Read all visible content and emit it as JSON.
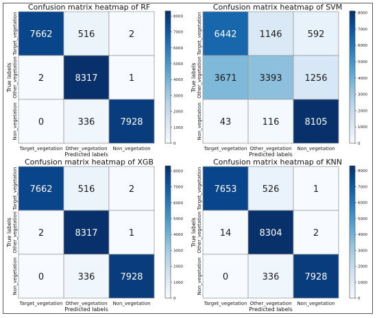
{
  "chart_data": [
    {
      "type": "heatmap",
      "title": "Confusion matrix heatmap of RF",
      "rows": [
        "Target_vegetation",
        "Other_vegetation",
        "Non_vegetation"
      ],
      "cols": [
        "Target_vegetation",
        "Other_vegetation",
        "Non_vegetation"
      ],
      "values": [
        [
          7662,
          516,
          2
        ],
        [
          2,
          8317,
          1
        ],
        [
          0,
          336,
          7928
        ]
      ],
      "xlabel": "Predicted labels",
      "ylabel": "True labels",
      "colorbar": {
        "min": 0,
        "max": 8317,
        "ticks": [
          0,
          1000,
          2000,
          3000,
          4000,
          5000,
          6000,
          7000,
          8000
        ]
      },
      "colormap": "Blues"
    },
    {
      "type": "heatmap",
      "title": "Confusion matrix heatmap of SVM",
      "rows": [
        "Target_vegetation",
        "Other_vegetation",
        "Non_vegetation"
      ],
      "cols": [
        "Target_vegetation",
        "Other_vegetation",
        "Non_vegetation"
      ],
      "values": [
        [
          6442,
          1146,
          592
        ],
        [
          3671,
          3393,
          1256
        ],
        [
          43,
          116,
          8105
        ]
      ],
      "xlabel": "Predicted labels",
      "ylabel": "True labels",
      "colorbar": {
        "min": 0,
        "max": 8105,
        "ticks": [
          0,
          1000,
          2000,
          3000,
          4000,
          5000,
          6000,
          7000,
          8000
        ]
      },
      "colormap": "Blues"
    },
    {
      "type": "heatmap",
      "title": "Confusion matrix heatmap of XGB",
      "rows": [
        "Target_vegetation",
        "Other_vegetation",
        "Non_vegetation"
      ],
      "cols": [
        "Target_vegetation",
        "Other_vegetation",
        "Non_vegetation"
      ],
      "values": [
        [
          7662,
          516,
          2
        ],
        [
          2,
          8317,
          1
        ],
        [
          0,
          336,
          7928
        ]
      ],
      "xlabel": "Predicted labels",
      "ylabel": "True labels",
      "colorbar": {
        "min": 0,
        "max": 8317,
        "ticks": [
          0,
          1000,
          2000,
          3000,
          4000,
          5000,
          6000,
          7000,
          8000
        ]
      },
      "colormap": "Blues"
    },
    {
      "type": "heatmap",
      "title": "Confusion matrix heatmap of KNN",
      "rows": [
        "Target_vegetation",
        "Other_vegetation",
        "Non_vegetation"
      ],
      "cols": [
        "Target_vegetation",
        "Other_vegetation",
        "Non_vegetation"
      ],
      "values": [
        [
          7653,
          526,
          1
        ],
        [
          14,
          8304,
          2
        ],
        [
          0,
          336,
          7928
        ]
      ],
      "xlabel": "Predicted labels",
      "ylabel": "True labels",
      "colorbar": {
        "min": 0,
        "max": 8304,
        "ticks": [
          0,
          1000,
          2000,
          3000,
          4000,
          5000,
          6000,
          7000,
          8000
        ]
      },
      "colormap": "Blues"
    }
  ]
}
